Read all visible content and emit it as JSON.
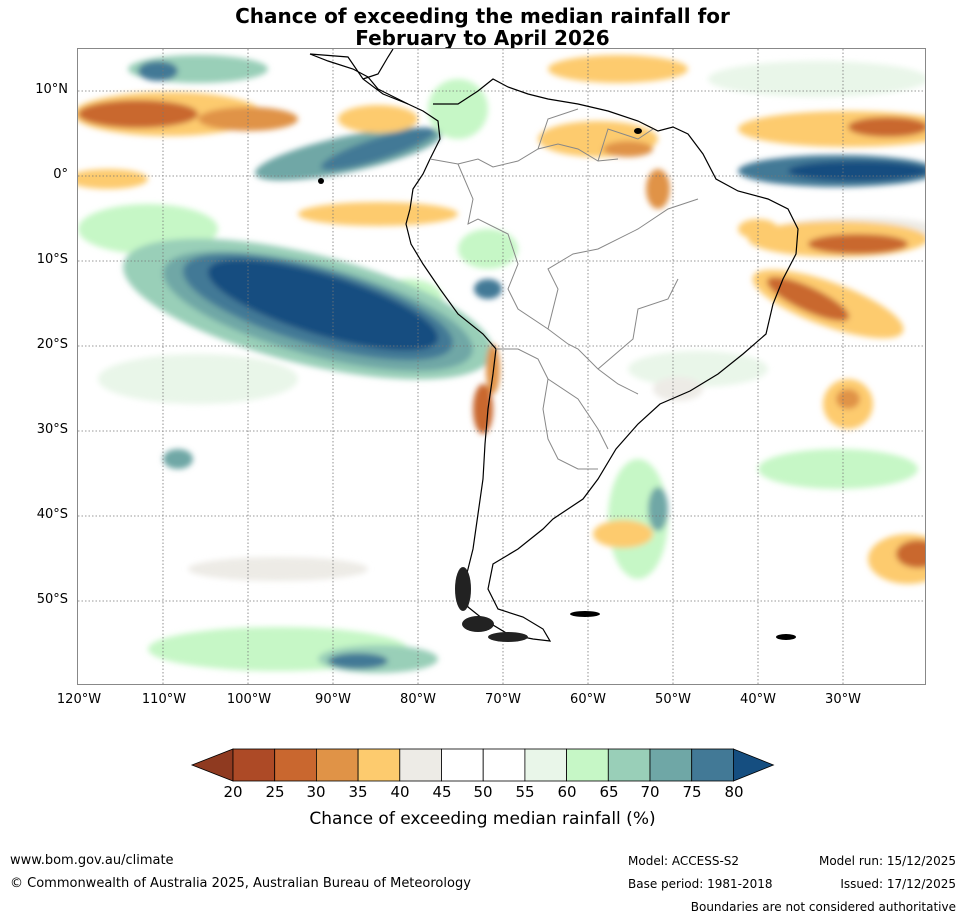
{
  "title": {
    "line1": "Chance of exceeding the median rainfall for",
    "line2": "February to April 2026"
  },
  "map": {
    "lat_labels": [
      "10°N",
      "0°",
      "10°S",
      "20°S",
      "30°S",
      "40°S",
      "50°S"
    ],
    "lon_labels": [
      "120°W",
      "110°W",
      "100°W",
      "90°W",
      "80°W",
      "70°W",
      "60°W",
      "50°W",
      "40°W",
      "30°W"
    ]
  },
  "colorbar": {
    "ticks": [
      "20",
      "25",
      "30",
      "35",
      "40",
      "45",
      "50",
      "55",
      "60",
      "65",
      "70",
      "75",
      "80"
    ],
    "colors": [
      "#8f3a20",
      "#ad4a26",
      "#c9672f",
      "#e09347",
      "#fdcb6e",
      "#edebe6",
      "#ffffff",
      "#ffffff",
      "#e9f6e9",
      "#c6f7c6",
      "#99cfb8",
      "#6fa7a6",
      "#427996",
      "#154e80"
    ],
    "label": "Chance of exceeding median rainfall (%)"
  },
  "footer": {
    "website": "www.bom.gov.au/climate",
    "copyright": "© Commonwealth of Australia 2025, Australian Bureau of Meteorology",
    "model": "Model: ACCESS-S2",
    "base_period": "Base period: 1981-2018",
    "model_run": "Model run: 15/12/2025",
    "issued": "Issued: 17/12/2025",
    "boundaries": "Boundaries are not considered authoritative"
  }
}
